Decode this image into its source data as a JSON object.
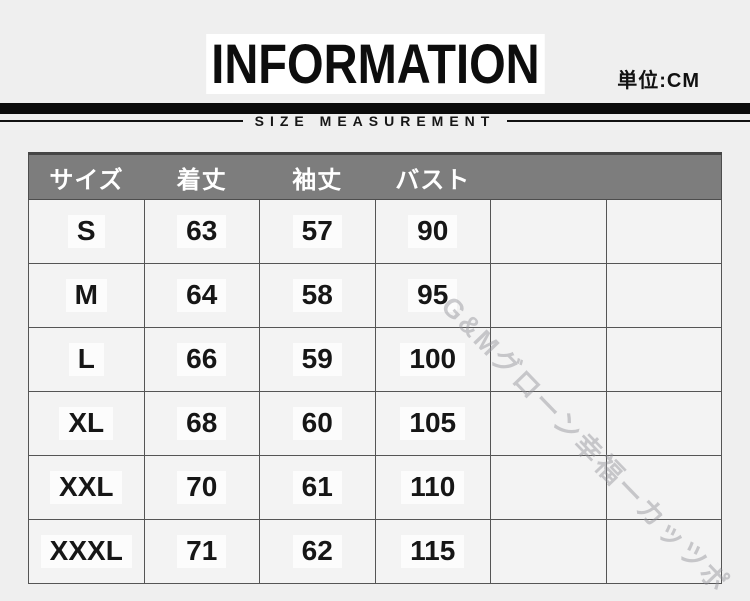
{
  "page": {
    "unit_label": "単位:CM",
    "bg_color": "#efefef"
  },
  "header": {
    "title": "INFORMATION",
    "subtitle": "SIZE MEASUREMENT"
  },
  "table": {
    "columns": [
      "サイズ",
      "着丈",
      "袖丈",
      "バスト",
      "",
      ""
    ],
    "body": [
      [
        "S",
        "63",
        "57",
        "90",
        "",
        ""
      ],
      [
        "M",
        "64",
        "58",
        "95",
        "",
        ""
      ],
      [
        "L",
        "66",
        "59",
        "100",
        "",
        ""
      ],
      [
        "XL",
        "68",
        "60",
        "105",
        "",
        ""
      ],
      [
        "XXL",
        "70",
        "61",
        "110",
        "",
        ""
      ],
      [
        "XXXL",
        "71",
        "62",
        "115",
        "",
        ""
      ]
    ]
  },
  "watermark": {
    "text": "G&Mグローン幸福ーカッツポ"
  },
  "colors": {
    "header_bg": "#7d7d7d",
    "header_text": "#ffffff",
    "cell_bg": "#f3f3f3",
    "border": "#4d4d4d",
    "bar": "#0b0b0b"
  }
}
